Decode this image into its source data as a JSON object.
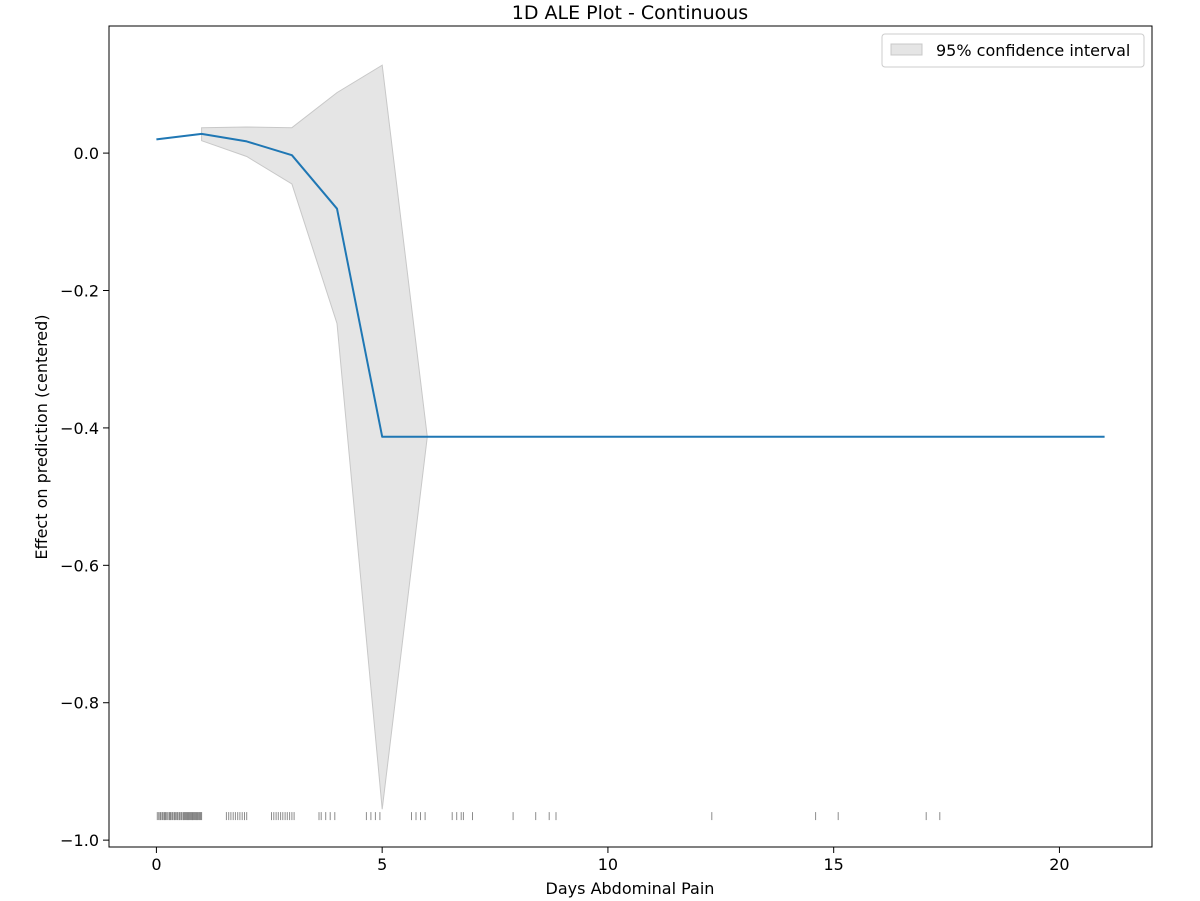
{
  "chart_data": {
    "type": "line",
    "title": "1D ALE Plot - Continuous",
    "xlabel": "Days Abdominal Pain",
    "ylabel": "Effect on prediction (centered)",
    "xlim": [
      -1.05,
      22.05
    ],
    "ylim": [
      -1.01,
      0.185
    ],
    "xticks": [
      0,
      5,
      10,
      15,
      20
    ],
    "xtick_labels": [
      "0",
      "5",
      "10",
      "15",
      "20"
    ],
    "yticks": [
      0.0,
      -0.2,
      -0.4,
      -0.6,
      -0.8,
      -1.0
    ],
    "ytick_labels": [
      "0.0",
      "−0.2",
      "−0.4",
      "−0.6",
      "−0.8",
      "−1.0"
    ],
    "grid": false,
    "legend": {
      "placement": "top-right",
      "entries": [
        "95% confidence interval"
      ]
    },
    "series": [
      {
        "kind": "line",
        "color": "#1f77b4",
        "x": [
          0,
          1,
          2,
          3,
          4,
          5,
          6,
          21
        ],
        "y": [
          0.02,
          0.028,
          0.017,
          -0.003,
          -0.081,
          -0.413,
          -0.413,
          -0.413
        ]
      }
    ],
    "confidence_band": {
      "name": "95% confidence interval",
      "color": "#d3d3d3",
      "x": [
        1,
        2,
        3,
        4,
        5,
        6
      ],
      "upper": [
        0.037,
        0.038,
        0.037,
        0.088,
        0.128,
        -0.413
      ],
      "lower": [
        0.018,
        -0.005,
        -0.045,
        -0.248,
        -0.955,
        -0.413
      ]
    },
    "rug": {
      "y": -0.965,
      "color": "#000000",
      "x": [
        0.02,
        0.05,
        0.08,
        0.1,
        0.13,
        0.15,
        0.18,
        0.2,
        0.22,
        0.25,
        0.28,
        0.3,
        0.32,
        0.35,
        0.37,
        0.4,
        0.42,
        0.45,
        0.47,
        0.5,
        0.52,
        0.55,
        0.57,
        0.6,
        0.62,
        0.64,
        0.66,
        0.68,
        0.7,
        0.72,
        0.74,
        0.76,
        0.78,
        0.8,
        0.82,
        0.84,
        0.86,
        0.88,
        0.9,
        0.92,
        0.94,
        0.96,
        0.98,
        1.0,
        1.55,
        1.6,
        1.65,
        1.7,
        1.75,
        1.8,
        1.85,
        1.9,
        1.95,
        2.0,
        2.55,
        2.6,
        2.65,
        2.7,
        2.75,
        2.8,
        2.85,
        2.9,
        2.95,
        3.0,
        3.05,
        3.6,
        3.65,
        3.75,
        3.85,
        3.95,
        4.65,
        4.75,
        4.85,
        4.95,
        5.65,
        5.75,
        5.85,
        5.95,
        6.55,
        6.65,
        6.75,
        6.8,
        7.0,
        7.9,
        8.4,
        8.7,
        8.85,
        12.3,
        14.6,
        15.1,
        17.05,
        17.35
      ]
    }
  }
}
